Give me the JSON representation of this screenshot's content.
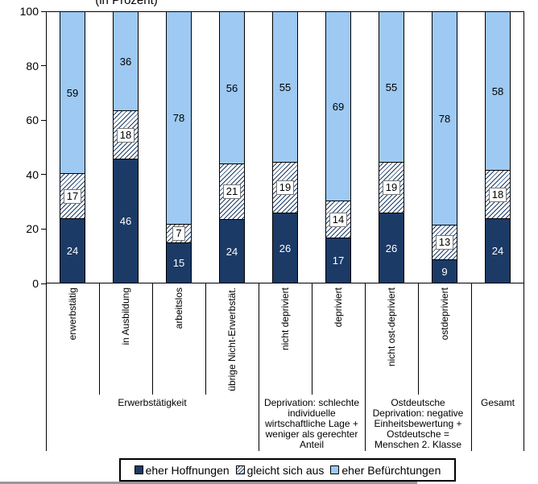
{
  "title": "(in Prozent)",
  "colors": {
    "hope_fill": "#1B3A66",
    "fear_fill": "#9DC9F2",
    "hatch_line": "#1B3A66",
    "hatch_bg": "#FFFFFF",
    "axis": "#000000"
  },
  "y_axis": {
    "ticks": [
      0,
      20,
      40,
      60,
      80,
      100
    ]
  },
  "legend": [
    {
      "key": "hope",
      "label": "eher Hoffnungen",
      "swatch": "solid-dark"
    },
    {
      "key": "balance",
      "label": "gleicht sich aus",
      "swatch": "hatch"
    },
    {
      "key": "fear",
      "label": "eher Befürchtungen",
      "swatch": "solid-light"
    }
  ],
  "chart_data": {
    "type": "bar",
    "stacked": true,
    "unit": "percent",
    "title": "(in Prozent)",
    "ylim": [
      0,
      100
    ],
    "categories": [
      "erwerbstätig",
      "in Ausbildung",
      "arbeitslos",
      "übrige Nicht-Erwerbstät.",
      "nicht depriviert",
      "depriviert",
      "nicht ost-depriviert",
      "ostdepriviert",
      ""
    ],
    "series": [
      {
        "name": "eher Hoffnungen",
        "values": [
          24,
          46,
          15,
          24,
          26,
          17,
          26,
          9,
          24
        ]
      },
      {
        "name": "gleicht sich aus",
        "values": [
          17,
          18,
          7,
          21,
          19,
          14,
          19,
          13,
          18
        ]
      },
      {
        "name": "eher Befürchtungen",
        "values": [
          59,
          36,
          78,
          56,
          55,
          69,
          55,
          78,
          58
        ]
      }
    ],
    "groups": [
      {
        "label": "Erwerbstätigkeit",
        "span": 4
      },
      {
        "label": "Deprivation: schlechte individuelle wirtschaftliche Lage + weniger als gerechter Anteil",
        "span": 2
      },
      {
        "label": "Ostdeutsche Deprivation: negative Einheitsbewertung + Ostdeutsche = Menschen 2. Klasse",
        "span": 2
      },
      {
        "label": "Gesamt",
        "span": 1
      }
    ]
  }
}
